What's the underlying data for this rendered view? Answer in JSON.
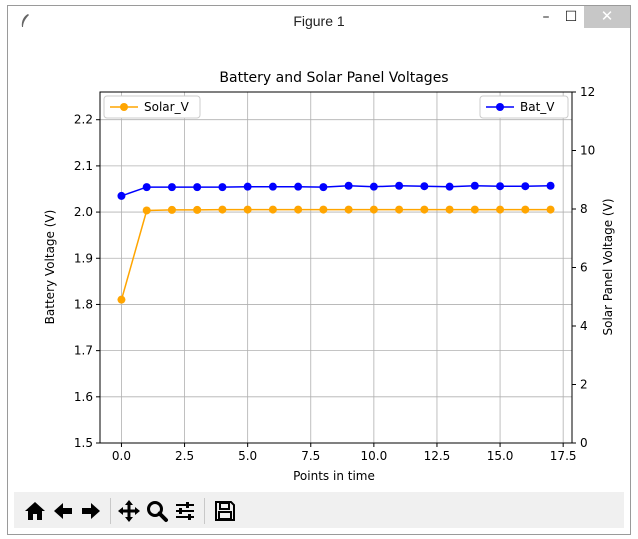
{
  "window": {
    "title": "Figure 1",
    "controls": {
      "minimize": "–",
      "maximize": "☐",
      "close": "✕"
    }
  },
  "toolbar": {
    "buttons": [
      {
        "name": "home",
        "icon": "home-icon"
      },
      {
        "name": "back",
        "icon": "arrow-left-icon"
      },
      {
        "name": "forward",
        "icon": "arrow-right-icon"
      },
      {
        "name": "pan",
        "icon": "move-icon"
      },
      {
        "name": "zoom",
        "icon": "zoom-icon"
      },
      {
        "name": "configure",
        "icon": "sliders-icon"
      },
      {
        "name": "save",
        "icon": "save-icon"
      }
    ]
  },
  "chart_data": {
    "type": "line",
    "title": "Battery and Solar Panel Voltages",
    "xlabel": "Points in time",
    "ylabel": "Battery Voltage (V)",
    "y2label": "Solar Panel Voltage (V)",
    "xlim": [
      -0.85,
      17.85
    ],
    "ylim": [
      1.5,
      2.26
    ],
    "y2lim": [
      0,
      12
    ],
    "xticks": [
      "0.0",
      "2.5",
      "5.0",
      "7.5",
      "10.0",
      "12.5",
      "15.0",
      "17.5"
    ],
    "yticks": [
      "1.5",
      "1.6",
      "1.7",
      "1.8",
      "1.9",
      "2.0",
      "2.1",
      "2.2"
    ],
    "y2ticks": [
      "0",
      "2",
      "4",
      "6",
      "8",
      "10",
      "12"
    ],
    "grid": true,
    "series": [
      {
        "name": "Bat_V",
        "axis": "left",
        "color": "#0000ff",
        "legend": "top-right",
        "x": [
          0,
          1,
          2,
          3,
          4,
          5,
          6,
          7,
          8,
          9,
          10,
          11,
          12,
          13,
          14,
          15,
          16,
          17
        ],
        "values": [
          2.035,
          2.054,
          2.054,
          2.054,
          2.054,
          2.055,
          2.055,
          2.055,
          2.054,
          2.057,
          2.055,
          2.057,
          2.056,
          2.055,
          2.057,
          2.056,
          2.056,
          2.057
        ]
      },
      {
        "name": "Solar_V",
        "axis": "right",
        "color": "#ffa500",
        "legend": "top-left",
        "x": [
          0,
          1,
          2,
          3,
          4,
          5,
          6,
          7,
          8,
          9,
          10,
          11,
          12,
          13,
          14,
          15,
          16,
          17
        ],
        "values": [
          4.9,
          7.95,
          7.97,
          7.97,
          7.98,
          7.98,
          7.98,
          7.98,
          7.98,
          7.98,
          7.98,
          7.98,
          7.98,
          7.98,
          7.98,
          7.98,
          7.98,
          7.98
        ]
      }
    ]
  }
}
